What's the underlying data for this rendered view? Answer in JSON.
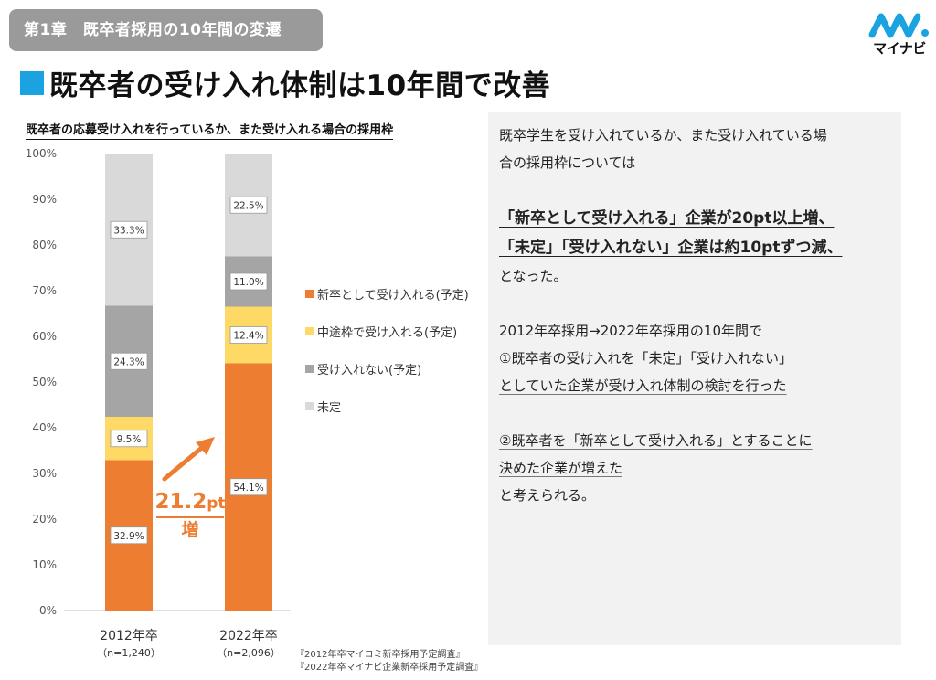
{
  "header": {
    "chapter": "第1章　既卒者採用の10年間の変遷",
    "title": "既卒者の受け入れ体制は10年間で改善",
    "logo_text": "マイナビ"
  },
  "chart_data": {
    "type": "bar",
    "stacked": true,
    "title": "既卒者の応募受け入れを行っているか、また受け入れる場合の採用枠",
    "categories": [
      "2012年卒",
      "2022年卒"
    ],
    "category_notes": [
      "（n=1,240）",
      "（n=2,096）"
    ],
    "ylim": [
      0,
      100
    ],
    "yticks": [
      "0%",
      "10%",
      "20%",
      "30%",
      "40%",
      "50%",
      "60%",
      "70%",
      "80%",
      "90%",
      "100%"
    ],
    "series": [
      {
        "name": "新卒として受け入れる(予定)",
        "color": "#ed7d31",
        "values": [
          32.9,
          54.1
        ],
        "labels": [
          "32.9%",
          "54.1%"
        ]
      },
      {
        "name": "中途枠で受け入れる(予定)",
        "color": "#ffd966",
        "values": [
          9.5,
          12.4
        ],
        "labels": [
          "9.5%",
          "12.4%"
        ]
      },
      {
        "name": "受け入れない(予定)",
        "color": "#a5a5a5",
        "values": [
          24.3,
          11.0
        ],
        "labels": [
          "24.3%",
          "11.0%"
        ]
      },
      {
        "name": "未定",
        "color": "#d9d9d9",
        "values": [
          33.3,
          22.5
        ],
        "labels": [
          "33.3%",
          "22.5%"
        ]
      }
    ],
    "legend_position": "right",
    "annotation": {
      "value": "21.2",
      "unit": "pt",
      "text": "増",
      "color": "#ed7d31"
    }
  },
  "sources": [
    "『2012年卒マイコミ新卒採用予定調査』",
    "『2022年卒マイナビ企業新卒採用予定調査』"
  ],
  "panel": {
    "intro_1": "既卒学生を受け入れているか、また受け入れている場",
    "intro_2": "合の採用枠については",
    "emph_1": "「新卒として受け入れる」企業が20pt以上増、",
    "emph_2": "「未定」「受け入れない」企業は約10ptずつ減、",
    "outro": "となった。",
    "period": "2012年卒採用→2022年卒採用の10年間で",
    "point1_a": "①既卒者の受け入れを「未定」「受け入れない」",
    "point1_b": "としていた企業が受け入れ体制の検討を行った",
    "point2_a": "②既卒者を「新卒として受け入れる」とすることに",
    "point2_b": "決めた企業が増えた",
    "conclusion": "と考えられる。"
  }
}
